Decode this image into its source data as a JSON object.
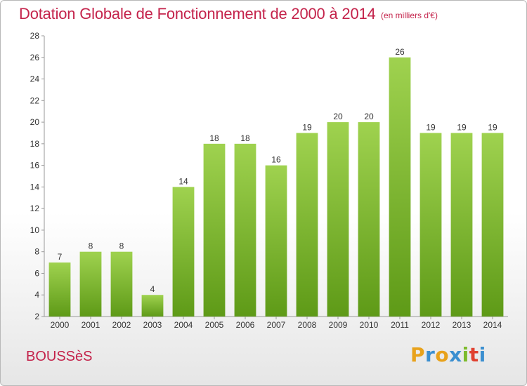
{
  "title": "Dotation Globale de Fonctionnement de 2000 à 2014",
  "subtitle": "(en milliers d'€)",
  "commune": "BOUSSèS",
  "logo": {
    "letters": [
      "P",
      "r",
      "o",
      "x",
      "i",
      "t",
      "i"
    ],
    "colors": [
      "#e8a21b",
      "#3b8fd0",
      "#e8a21b",
      "#3b8fd0",
      "#7dbb2c",
      "#e0402f",
      "#3b8fd0"
    ]
  },
  "colors": {
    "title": "#c4234b",
    "bar_top": "#9fd24f",
    "bar_bottom": "#5e9a17"
  },
  "chart_data": {
    "type": "bar",
    "title": "Dotation Globale de Fonctionnement de 2000 à 2014",
    "subtitle": "(en milliers d'€)",
    "categories": [
      "2000",
      "2001",
      "2002",
      "2003",
      "2004",
      "2005",
      "2006",
      "2007",
      "2008",
      "2009",
      "2010",
      "2011",
      "2012",
      "2013",
      "2014"
    ],
    "values": [
      7,
      8,
      8,
      4,
      14,
      18,
      18,
      16,
      19,
      20,
      20,
      26,
      19,
      19,
      19
    ],
    "ylim": [
      2,
      28
    ],
    "yticks": [
      "2",
      "4",
      "6",
      "8",
      "10",
      "12",
      "14",
      "16",
      "18",
      "20",
      "22",
      "24",
      "26",
      "28"
    ],
    "grid": false,
    "legend": "none"
  }
}
